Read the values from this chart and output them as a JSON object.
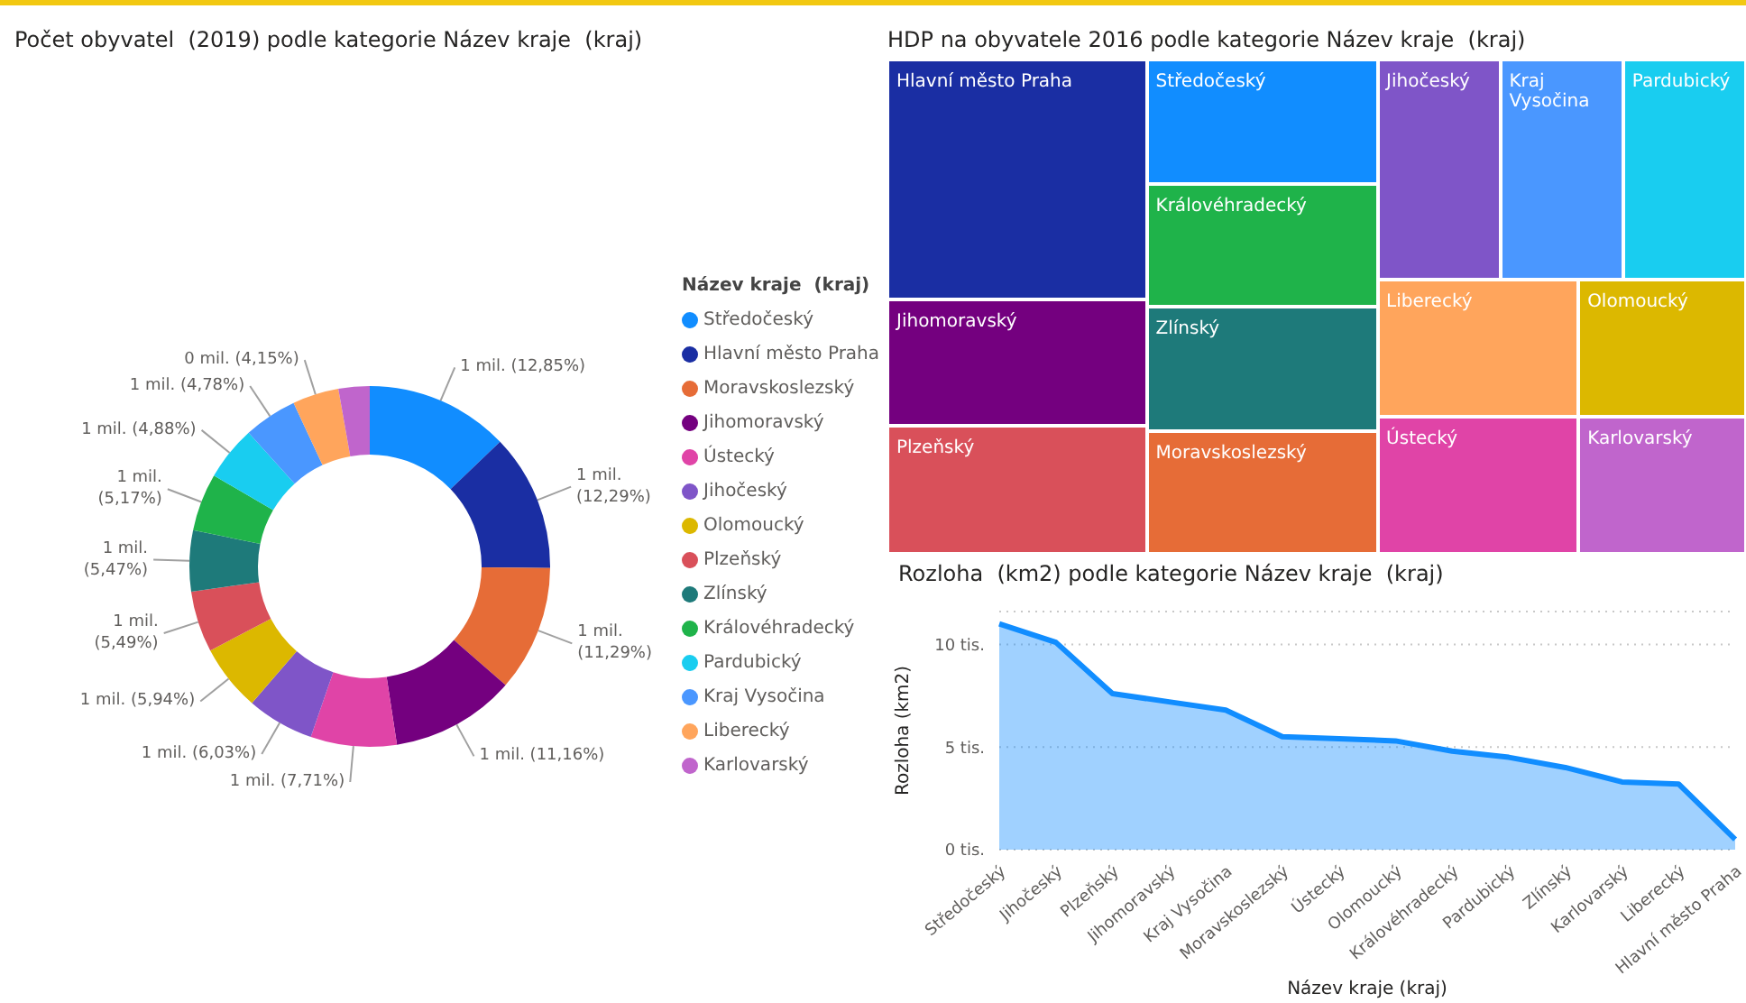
{
  "chart_data": [
    {
      "type": "donut",
      "title": "Počet obyvatel  (2019) podle kategorie Název kraje  (kraj)",
      "legend_title": "Název kraje  (kraj)",
      "legend": "right",
      "categories": [
        "Středočeský",
        "Hlavní město Praha",
        "Moravskoslezský",
        "Jihomoravský",
        "Ústecký",
        "Jihočeský",
        "Olomoucký",
        "Plzeňský",
        "Zlínský",
        "Královéhradecký",
        "Pardubický",
        "Kraj Vysočina",
        "Liberecký",
        "Karlovarský"
      ],
      "values": [
        12.85,
        12.29,
        11.29,
        11.16,
        7.71,
        6.03,
        5.94,
        5.49,
        5.47,
        5.17,
        4.88,
        4.78,
        4.15,
        2.79
      ],
      "value_labels": [
        "1 mil. (12,85%)",
        "1 mil. (12,29%)",
        "1 mil. (11,29%)",
        "1 mil. (11,16%)",
        "1 mil. (7,71%)",
        "1 mil. (6,03%)",
        "1 mil. (5,94%)",
        "1 mil. (5,49%)",
        "1 mil. (5,47%)",
        "1 mil. (5,17%)",
        "1 mil. (4,88%)",
        "1 mil. (4,78%)",
        "0 mil. (4,15%)",
        null
      ],
      "colors": [
        "#118dff",
        "#1a2ea3",
        "#e66c37",
        "#74007f",
        "#e044a7",
        "#7f55c8",
        "#dcb800",
        "#d9505a",
        "#1e7a7a",
        "#1fb34a",
        "#19cdf0",
        "#4a97ff",
        "#ffa55c",
        "#c065cc"
      ]
    },
    {
      "type": "other",
      "title": "HDP na obyvatele 2016 podle kategorie Název kraje  (kraj)",
      "categories": [
        "Hlavní město Praha",
        "Jihomoravský",
        "Plzeňský",
        "Středočeský",
        "Královéhradecký",
        "Zlínský",
        "Moravskoslezský",
        "Jihočeský",
        "Kraj Vysočina",
        "Pardubický",
        "Liberecký",
        "Ústecký",
        "Olomoucký",
        "Karlovarský"
      ],
      "colors": [
        "#1a2ea3",
        "#74007f",
        "#d9505a",
        "#118dff",
        "#1fb34a",
        "#1e7a7a",
        "#e66c37",
        "#7f55c8",
        "#4a97ff",
        "#19cdf0",
        "#ffa55c",
        "#e044a7",
        "#dcb800",
        "#c065cc"
      ]
    },
    {
      "type": "area",
      "title": "Rozloha  (km2) podle kategorie Název kraje  (kraj)",
      "xlabel": "Název kraje (kraj)",
      "ylabel": "Rozloha (km2)",
      "categories": [
        "Středočeský",
        "Jihočeský",
        "Plzeňský",
        "Jihomoravský",
        "Kraj Vysočina",
        "Moravskoslezský",
        "Ústecký",
        "Olomoucký",
        "Královéhradecký",
        "Pardubický",
        "Zlínský",
        "Karlovarský",
        "Liberecký",
        "Hlavní město Praha"
      ],
      "series": [
        {
          "color": "#118dff",
          "values": [
            11.0,
            10.1,
            7.6,
            7.2,
            6.8,
            5.5,
            5.4,
            5.3,
            4.8,
            4.5,
            4.0,
            3.3,
            3.2,
            0.5
          ]
        }
      ],
      "ylim": [
        0,
        11.6
      ],
      "yticks": [
        {
          "value": 0,
          "label": "0 tis."
        },
        {
          "value": 5,
          "label": "5 tis."
        },
        {
          "value": 10,
          "label": "10 tis."
        }
      ],
      "grid": "y",
      "marker": "none",
      "line_style": "solid"
    }
  ]
}
